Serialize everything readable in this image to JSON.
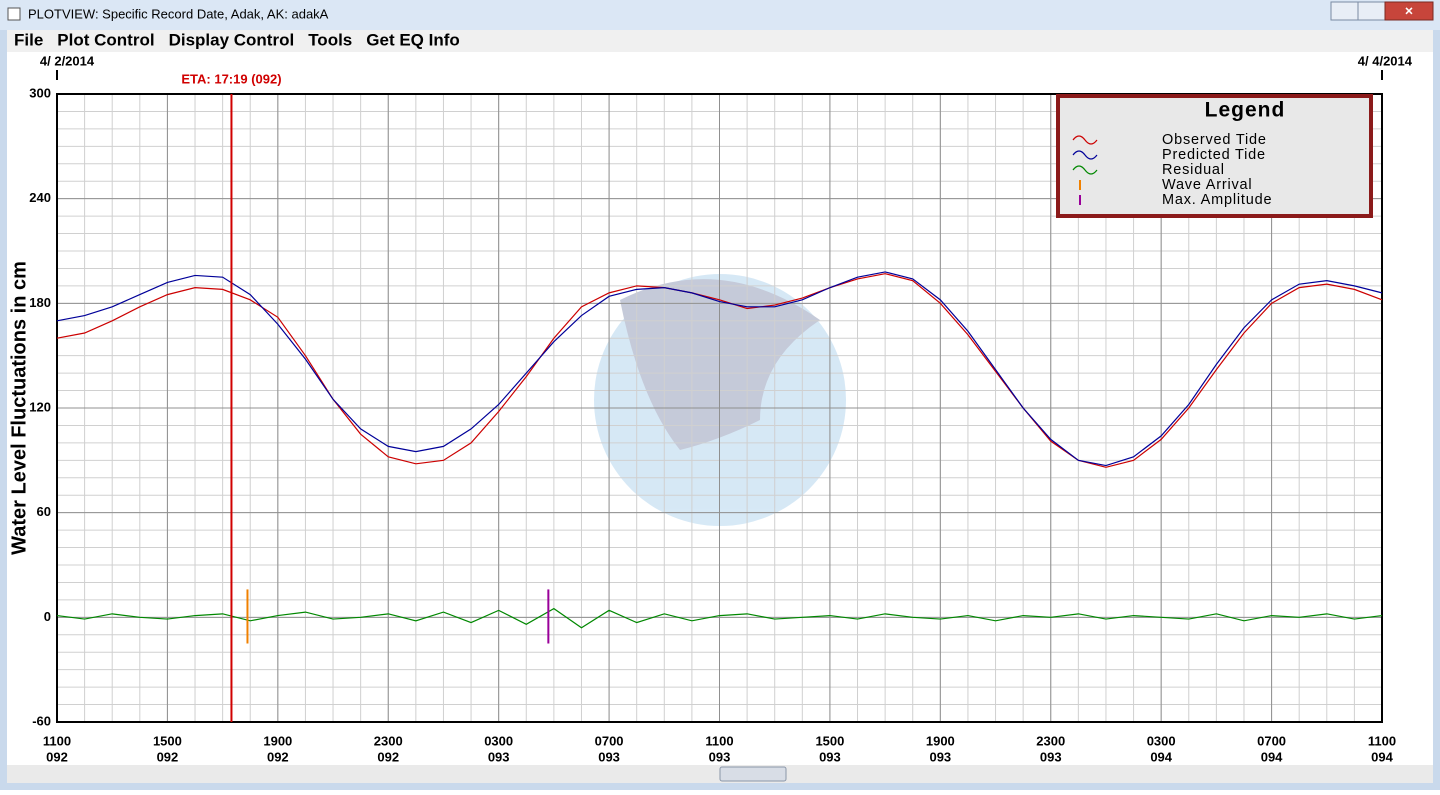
{
  "window": {
    "title": "PLOTVIEW: Specific Record Date, Adak, AK: adakA",
    "menu": [
      "File",
      "Plot Control",
      "Display Control",
      "Tools",
      "Get EQ Info"
    ]
  },
  "chart_data": {
    "type": "line",
    "ylabel": "Water Level Fluctuations in cm",
    "xlim": [
      0,
      48
    ],
    "ylim": [
      -60,
      300
    ],
    "yticks": [
      -60,
      0,
      60,
      120,
      180,
      240,
      300
    ],
    "xticks": [
      {
        "value": 0,
        "label": "1100",
        "day": "092"
      },
      {
        "value": 4,
        "label": "1500",
        "day": "092"
      },
      {
        "value": 8,
        "label": "1900",
        "day": "092"
      },
      {
        "value": 12,
        "label": "2300",
        "day": "092"
      },
      {
        "value": 16,
        "label": "0300",
        "day": "093"
      },
      {
        "value": 20,
        "label": "0700",
        "day": "093"
      },
      {
        "value": 24,
        "label": "1100",
        "day": "093"
      },
      {
        "value": 28,
        "label": "1500",
        "day": "093"
      },
      {
        "value": 32,
        "label": "1900",
        "day": "093"
      },
      {
        "value": 36,
        "label": "2300",
        "day": "093"
      },
      {
        "value": 40,
        "label": "0300",
        "day": "094"
      },
      {
        "value": 44,
        "label": "0700",
        "day": "094"
      },
      {
        "value": 48,
        "label": "1100",
        "day": "094"
      }
    ],
    "grid": true,
    "minor_grid": {
      "x": 1,
      "y": 10
    },
    "dates": [
      {
        "label": "4/ 2/2014",
        "x": 0
      },
      {
        "label": "4/ 4/2014",
        "x": 48
      }
    ],
    "eta": {
      "label": "ETA: 17:19 (092)",
      "x": 6.32,
      "color": "#d00000"
    },
    "legend_title": "Legend",
    "legend": "upper right",
    "x": [
      0,
      1,
      2,
      3,
      4,
      5,
      6,
      7,
      8,
      9,
      10,
      11,
      12,
      13,
      14,
      15,
      16,
      17,
      18,
      19,
      20,
      21,
      22,
      23,
      24,
      25,
      26,
      27,
      28,
      29,
      30,
      31,
      32,
      33,
      34,
      35,
      36,
      37,
      38,
      39,
      40,
      41,
      42,
      43,
      44,
      45,
      46,
      47,
      48
    ],
    "series": [
      {
        "name": "Observed Tide",
        "color": "#cc0000",
        "values": [
          160,
          163,
          170,
          178,
          185,
          189,
          188,
          182,
          172,
          150,
          125,
          105,
          92,
          88,
          90,
          100,
          118,
          138,
          160,
          178,
          186,
          190,
          189,
          186,
          182,
          177,
          179,
          183,
          189,
          194,
          197,
          193,
          180,
          162,
          141,
          120,
          101,
          90,
          86,
          90,
          102,
          120,
          142,
          163,
          180,
          189,
          191,
          188,
          182
        ]
      },
      {
        "name": "Predicted Tide",
        "color": "#000099",
        "values": [
          170,
          173,
          178,
          185,
          192,
          196,
          195,
          185,
          168,
          148,
          125,
          108,
          98,
          95,
          98,
          108,
          122,
          140,
          158,
          173,
          184,
          188,
          189,
          186,
          181,
          178,
          178,
          182,
          189,
          195,
          198,
          194,
          182,
          164,
          142,
          120,
          102,
          90,
          87,
          92,
          104,
          122,
          145,
          166,
          182,
          191,
          193,
          190,
          186
        ]
      },
      {
        "name": "Residual",
        "color": "#008800",
        "values": [
          1,
          -1,
          2,
          0,
          -1,
          1,
          2,
          -2,
          1,
          3,
          -1,
          0,
          2,
          -2,
          3,
          -3,
          4,
          -4,
          5,
          -6,
          4,
          -3,
          2,
          -2,
          1,
          2,
          -1,
          0,
          1,
          -1,
          2,
          0,
          -1,
          1,
          -2,
          1,
          0,
          2,
          -1,
          1,
          0,
          -1,
          2,
          -2,
          1,
          0,
          2,
          -1,
          1
        ]
      }
    ],
    "markers": [
      {
        "name": "Wave Arrival",
        "color": "#f08000",
        "x": 6.9,
        "ymin": -15,
        "ymax": 16
      },
      {
        "name": "Max. Amplitude",
        "color": "#990099",
        "x": 17.8,
        "ymin": -15,
        "ymax": 16
      }
    ]
  }
}
